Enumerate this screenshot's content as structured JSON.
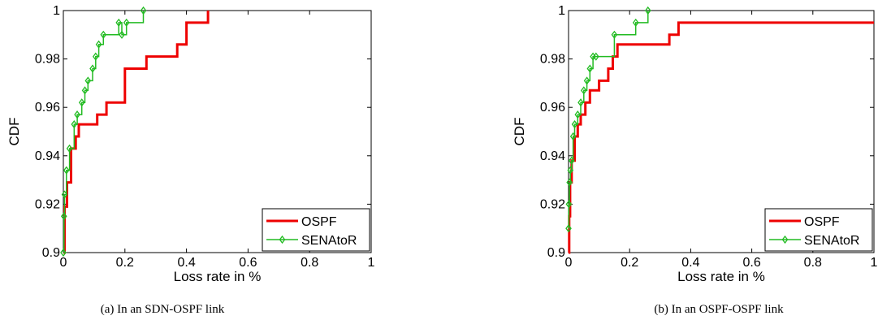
{
  "figure": {
    "panels": [
      {
        "caption": "(a) In an SDN-OSPF link"
      },
      {
        "caption": "(b) In an OSPF-OSPF link"
      }
    ]
  },
  "chart_data": [
    {
      "type": "line",
      "title": "",
      "xlabel": "Loss rate in %",
      "ylabel": "CDF",
      "xlim": [
        0,
        1
      ],
      "ylim": [
        0.9,
        1
      ],
      "xticks": [
        "0",
        "0.2",
        "0.4",
        "0.6",
        "0.8",
        "1"
      ],
      "yticks": [
        "0.9",
        "0.92",
        "0.94",
        "0.96",
        "0.98",
        "1"
      ],
      "legend_position": "bottom-right",
      "series": [
        {
          "name": "OSPF",
          "color": "#ee0000",
          "marker": "none",
          "x": [
            0,
            0.004,
            0.004,
            0.012,
            0.012,
            0.025,
            0.025,
            0.04,
            0.04,
            0.05,
            0.05,
            0.11,
            0.11,
            0.14,
            0.14,
            0.2,
            0.2,
            0.27,
            0.27,
            0.37,
            0.37,
            0.4,
            0.4,
            0.47,
            0.47
          ],
          "y": [
            0.9,
            0.9,
            0.919,
            0.919,
            0.929,
            0.929,
            0.943,
            0.943,
            0.948,
            0.948,
            0.953,
            0.953,
            0.957,
            0.957,
            0.962,
            0.962,
            0.976,
            0.976,
            0.981,
            0.981,
            0.986,
            0.986,
            0.995,
            0.995,
            1.0
          ]
        },
        {
          "name": "SENAtoR",
          "color": "#22bb22",
          "marker": "diamond",
          "x": [
            0,
            0.002,
            0.002,
            0.004,
            0.004,
            0.01,
            0.01,
            0.02,
            0.02,
            0.035,
            0.035,
            0.045,
            0.045,
            0.06,
            0.06,
            0.07,
            0.07,
            0.08,
            0.08,
            0.095,
            0.095,
            0.105,
            0.105,
            0.115,
            0.115,
            0.13,
            0.13,
            0.18,
            0.18,
            0.19,
            0.19,
            0.205,
            0.205,
            0.26,
            0.26
          ],
          "y": [
            0.9,
            0.9,
            0.915,
            0.915,
            0.924,
            0.924,
            0.934,
            0.934,
            0.943,
            0.943,
            0.953,
            0.953,
            0.957,
            0.957,
            0.962,
            0.962,
            0.967,
            0.967,
            0.971,
            0.971,
            0.976,
            0.976,
            0.981,
            0.981,
            0.986,
            0.986,
            0.99,
            0.99,
            0.995,
            0.995,
            0.99,
            0.99,
            0.995,
            0.995,
            1.0
          ],
          "marker_x": [
            0,
            0.002,
            0.004,
            0.01,
            0.02,
            0.035,
            0.045,
            0.06,
            0.07,
            0.08,
            0.095,
            0.105,
            0.115,
            0.13,
            0.18,
            0.19,
            0.205,
            0.26
          ],
          "marker_y": [
            0.9,
            0.915,
            0.924,
            0.934,
            0.943,
            0.953,
            0.957,
            0.962,
            0.967,
            0.971,
            0.976,
            0.981,
            0.986,
            0.99,
            0.995,
            0.99,
            0.995,
            1.0
          ]
        }
      ]
    },
    {
      "type": "line",
      "title": "",
      "xlabel": "Loss rate in %",
      "ylabel": "CDF",
      "xlim": [
        0,
        1
      ],
      "ylim": [
        0.9,
        1
      ],
      "xticks": [
        "0",
        "0.2",
        "0.4",
        "0.6",
        "0.8",
        "1"
      ],
      "yticks": [
        "0.9",
        "0.92",
        "0.94",
        "0.96",
        "0.98",
        "1"
      ],
      "legend_position": "bottom-right",
      "series": [
        {
          "name": "OSPF",
          "color": "#ee0000",
          "marker": "none",
          "x": [
            0,
            0.002,
            0.002,
            0.005,
            0.005,
            0.01,
            0.01,
            0.02,
            0.02,
            0.03,
            0.03,
            0.04,
            0.04,
            0.055,
            0.055,
            0.07,
            0.07,
            0.1,
            0.1,
            0.13,
            0.13,
            0.145,
            0.145,
            0.16,
            0.16,
            0.33,
            0.33,
            0.36,
            0.36,
            0.38,
            0.38,
            0.4,
            0.4,
            1.0
          ],
          "y": [
            0.9,
            0.9,
            0.915,
            0.915,
            0.929,
            0.929,
            0.938,
            0.938,
            0.948,
            0.948,
            0.953,
            0.953,
            0.957,
            0.957,
            0.962,
            0.962,
            0.967,
            0.967,
            0.971,
            0.971,
            0.976,
            0.976,
            0.981,
            0.981,
            0.986,
            0.986,
            0.99,
            0.99,
            0.995,
            0.995,
            0.995,
            0.995,
            0.995,
            0.995
          ]
        },
        {
          "name": "SENAtoR",
          "color": "#22bb22",
          "marker": "diamond",
          "x": [
            0,
            0.001,
            0.001,
            0.003,
            0.003,
            0.006,
            0.006,
            0.01,
            0.01,
            0.015,
            0.015,
            0.02,
            0.02,
            0.03,
            0.03,
            0.04,
            0.04,
            0.05,
            0.05,
            0.06,
            0.06,
            0.07,
            0.07,
            0.08,
            0.08,
            0.09,
            0.09,
            0.15,
            0.15,
            0.22,
            0.22,
            0.26,
            0.26
          ],
          "y": [
            0.91,
            0.91,
            0.92,
            0.92,
            0.929,
            0.929,
            0.934,
            0.934,
            0.938,
            0.938,
            0.948,
            0.948,
            0.953,
            0.953,
            0.957,
            0.957,
            0.962,
            0.962,
            0.967,
            0.967,
            0.971,
            0.971,
            0.976,
            0.976,
            0.981,
            0.981,
            0.981,
            0.981,
            0.99,
            0.99,
            0.995,
            0.995,
            1.0
          ],
          "marker_x": [
            0,
            0.001,
            0.003,
            0.006,
            0.01,
            0.015,
            0.02,
            0.03,
            0.04,
            0.05,
            0.06,
            0.07,
            0.08,
            0.09,
            0.15,
            0.22,
            0.26
          ],
          "marker_y": [
            0.91,
            0.92,
            0.929,
            0.934,
            0.938,
            0.948,
            0.953,
            0.957,
            0.962,
            0.967,
            0.971,
            0.976,
            0.981,
            0.981,
            0.99,
            0.995,
            1.0
          ]
        }
      ]
    }
  ]
}
